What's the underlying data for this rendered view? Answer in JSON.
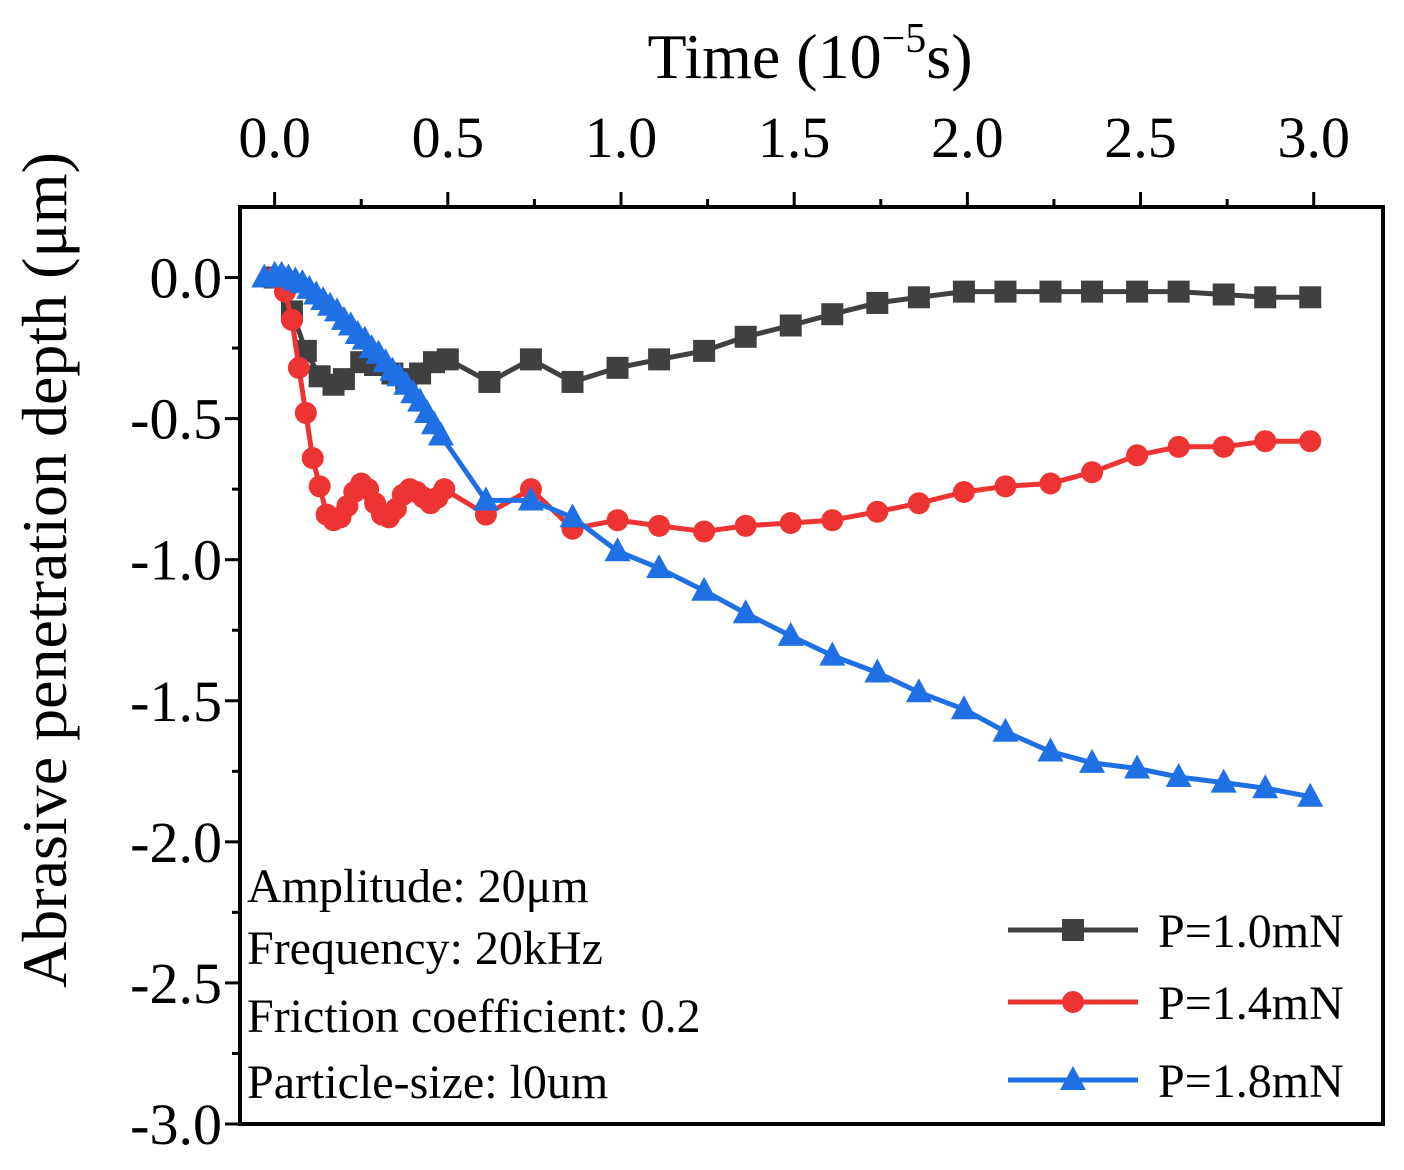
{
  "chart_data": {
    "type": "line",
    "title": "",
    "xlabel_main": "Time (10",
    "xlabel_exp": "−5",
    "xlabel_unit": "s)",
    "ylabel": "Abrasive penetration depth (μm)",
    "xlim": [
      -0.1,
      3.2
    ],
    "ylim": [
      -3.0,
      0.25
    ],
    "xticks": [
      0.0,
      0.5,
      1.0,
      1.5,
      2.0,
      2.5,
      3.0
    ],
    "xtick_labels": [
      "0.0",
      "0.5",
      "1.0",
      "1.5",
      "2.0",
      "2.5",
      "3.0"
    ],
    "yticks": [
      0.0,
      -0.5,
      -1.0,
      -1.5,
      -2.0,
      -2.5,
      -3.0
    ],
    "ytick_labels": [
      "0.0",
      "-0.5",
      "-1.0",
      "-1.5",
      "-2.0",
      "-2.5",
      "-3.0"
    ],
    "x_axis_position": "top",
    "grid": false,
    "legend_position": "bottom-right",
    "annotations": [
      "Amplitude: 20μm",
      "Frequency: 20kHz",
      "Friction coefficient: 0.2",
      "Particle-size: l0um"
    ],
    "series": [
      {
        "name": "P=1.0mN",
        "color": "#404040",
        "marker": "square",
        "x": [
          0.0,
          0.05,
          0.09,
          0.13,
          0.17,
          0.2,
          0.25,
          0.29,
          0.34,
          0.38,
          0.42,
          0.46,
          0.5,
          0.62,
          0.74,
          0.86,
          0.99,
          1.11,
          1.24,
          1.36,
          1.49,
          1.61,
          1.74,
          1.86,
          1.99,
          2.11,
          2.24,
          2.36,
          2.49,
          2.61,
          2.74,
          2.86,
          2.99
        ],
        "values": [
          0.0,
          -0.12,
          -0.26,
          -0.35,
          -0.38,
          -0.36,
          -0.3,
          -0.31,
          -0.34,
          -0.36,
          -0.34,
          -0.3,
          -0.29,
          -0.37,
          -0.29,
          -0.37,
          -0.32,
          -0.29,
          -0.26,
          -0.21,
          -0.17,
          -0.13,
          -0.09,
          -0.07,
          -0.05,
          -0.05,
          -0.05,
          -0.05,
          -0.05,
          -0.05,
          -0.06,
          -0.07,
          -0.07
        ]
      },
      {
        "name": "P=1.4mN",
        "color": "#ee3333",
        "marker": "circle",
        "x": [
          0.0,
          0.03,
          0.05,
          0.07,
          0.09,
          0.11,
          0.13,
          0.15,
          0.17,
          0.19,
          0.21,
          0.23,
          0.25,
          0.27,
          0.29,
          0.31,
          0.33,
          0.35,
          0.37,
          0.39,
          0.41,
          0.43,
          0.45,
          0.47,
          0.49,
          0.61,
          0.74,
          0.86,
          0.99,
          1.11,
          1.24,
          1.36,
          1.49,
          1.61,
          1.74,
          1.86,
          1.99,
          2.11,
          2.24,
          2.36,
          2.49,
          2.61,
          2.74,
          2.86,
          2.99
        ],
        "values": [
          0.0,
          -0.05,
          -0.15,
          -0.32,
          -0.48,
          -0.64,
          -0.74,
          -0.84,
          -0.86,
          -0.85,
          -0.81,
          -0.76,
          -0.73,
          -0.75,
          -0.8,
          -0.84,
          -0.85,
          -0.82,
          -0.77,
          -0.75,
          -0.76,
          -0.78,
          -0.8,
          -0.78,
          -0.75,
          -0.84,
          -0.75,
          -0.89,
          -0.86,
          -0.88,
          -0.9,
          -0.88,
          -0.87,
          -0.86,
          -0.83,
          -0.8,
          -0.76,
          -0.74,
          -0.73,
          -0.69,
          -0.63,
          -0.6,
          -0.6,
          -0.58,
          -0.58
        ]
      },
      {
        "name": "P=1.8mN",
        "color": "#1f6fe5",
        "marker": "triangle",
        "x": [
          -0.03,
          0.0,
          0.02,
          0.04,
          0.06,
          0.08,
          0.1,
          0.12,
          0.14,
          0.16,
          0.18,
          0.2,
          0.22,
          0.24,
          0.26,
          0.28,
          0.3,
          0.32,
          0.34,
          0.36,
          0.38,
          0.4,
          0.42,
          0.44,
          0.46,
          0.48,
          0.61,
          0.74,
          0.86,
          0.99,
          1.11,
          1.24,
          1.36,
          1.49,
          1.61,
          1.74,
          1.86,
          1.99,
          2.11,
          2.24,
          2.36,
          2.49,
          2.61,
          2.74,
          2.86,
          2.99
        ],
        "values": [
          0.0,
          0.01,
          0.01,
          0.0,
          -0.01,
          -0.02,
          -0.04,
          -0.06,
          -0.08,
          -0.1,
          -0.12,
          -0.15,
          -0.17,
          -0.2,
          -0.22,
          -0.25,
          -0.27,
          -0.3,
          -0.33,
          -0.35,
          -0.38,
          -0.41,
          -0.44,
          -0.48,
          -0.52,
          -0.56,
          -0.79,
          -0.79,
          -0.85,
          -0.97,
          -1.03,
          -1.11,
          -1.19,
          -1.27,
          -1.34,
          -1.4,
          -1.47,
          -1.53,
          -1.61,
          -1.68,
          -1.72,
          -1.74,
          -1.77,
          -1.79,
          -1.81,
          -1.84
        ]
      }
    ]
  }
}
